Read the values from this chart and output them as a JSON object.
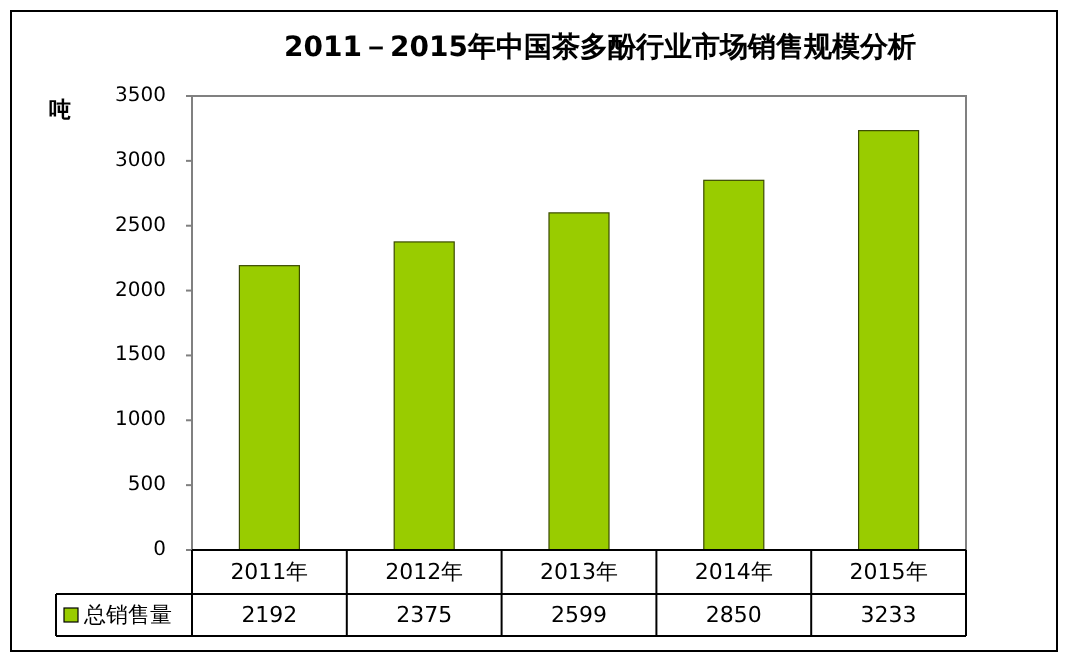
{
  "chart_data": {
    "type": "bar",
    "title": "2011－2015年中国茶多酚行业市场销售规模分析",
    "ylabel": "吨",
    "categories": [
      "2011年",
      "2012年",
      "2013年",
      "2014年",
      "2015年"
    ],
    "series": [
      {
        "name": "总销售量",
        "color": "#99cc00",
        "values": [
          2192,
          2375,
          2599,
          2850,
          3233
        ]
      }
    ],
    "ylim": [
      0,
      3500
    ],
    "yticks": [
      0,
      500,
      1000,
      1500,
      2000,
      2500,
      3000,
      3500
    ],
    "data_labels": true,
    "legend": "bottom left",
    "grid": false
  }
}
